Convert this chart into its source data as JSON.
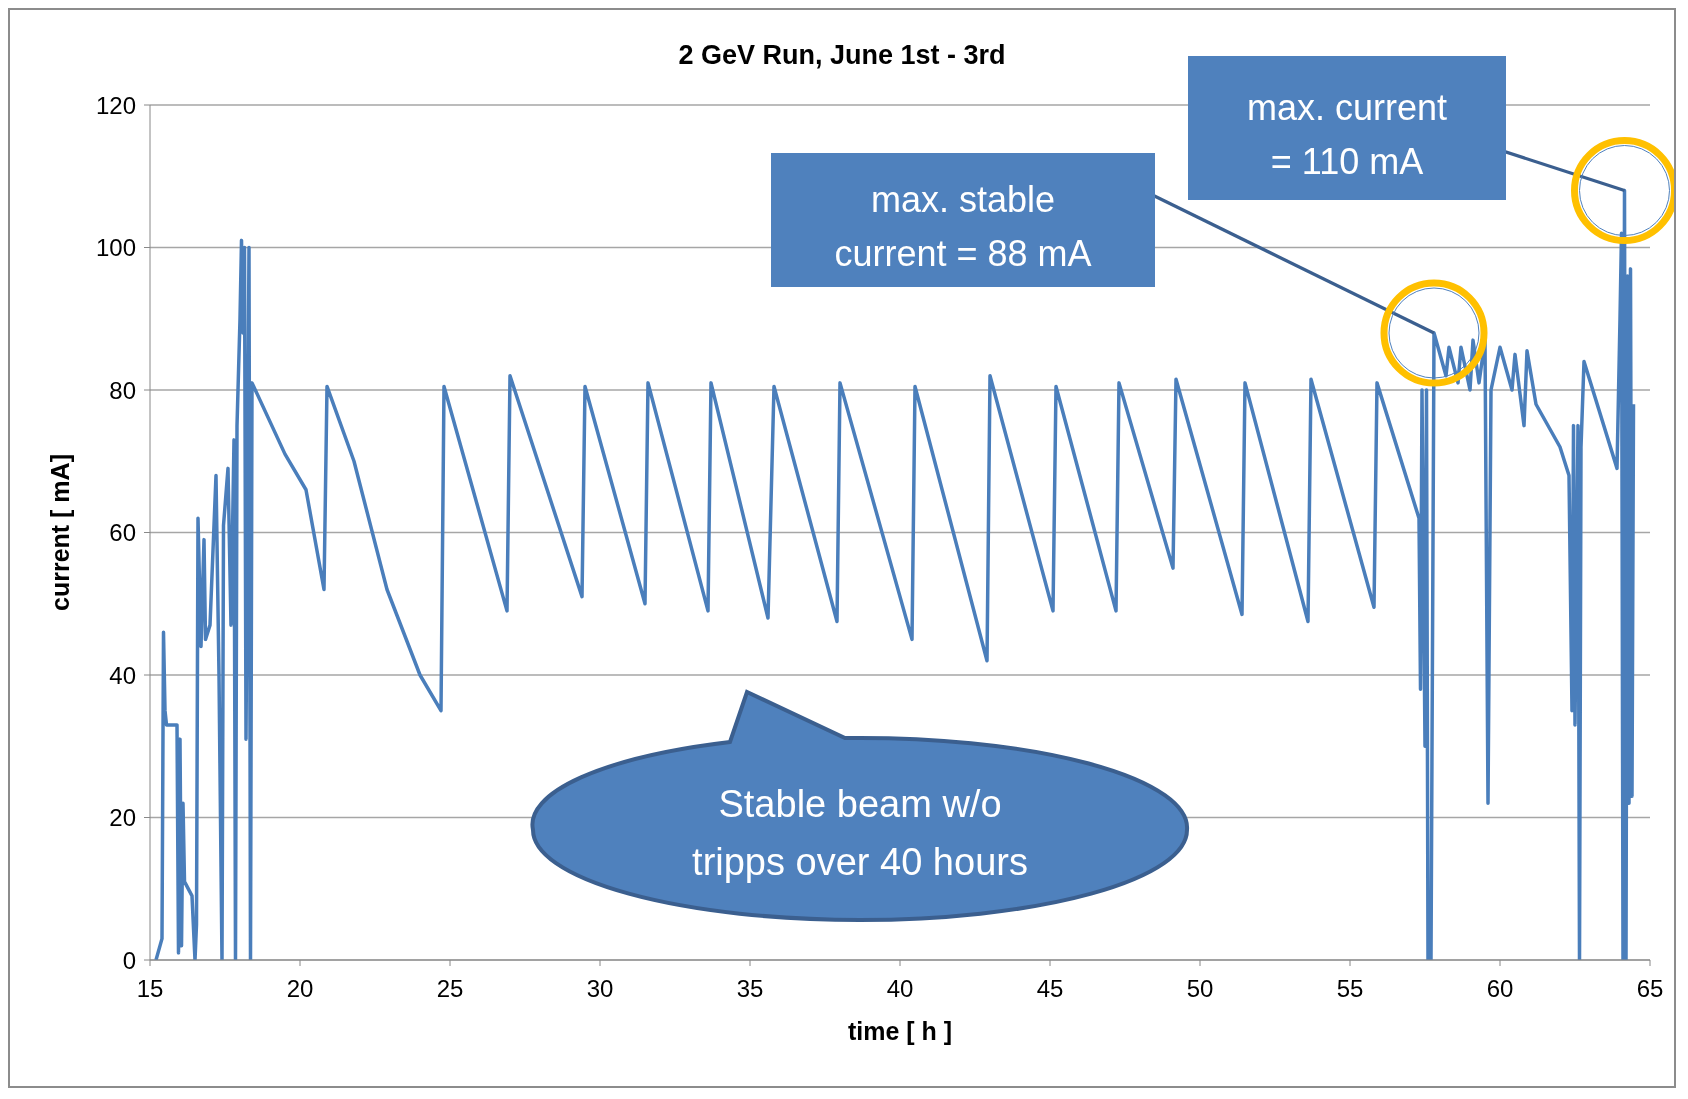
{
  "chart_data": {
    "type": "line",
    "title": "2 GeV Run, June 1st - 3rd",
    "xlabel": "time [ h ]",
    "ylabel": "current [ mA]",
    "xlim": [
      15,
      65
    ],
    "xticks": [
      15,
      20,
      25,
      30,
      35,
      40,
      45,
      50,
      55,
      60,
      65
    ],
    "ylim": [
      0,
      120
    ],
    "yticks": [
      0,
      20,
      40,
      60,
      80,
      100,
      120
    ],
    "grid": "y",
    "legend": false,
    "marker": "none",
    "line_style": "solid",
    "annotations": [
      {
        "text": "max. stable\ncurrent = 88 mA",
        "x": 57.8,
        "y": 88
      },
      {
        "text": "max. current\n= 110 mA",
        "x": 64.15,
        "y": 108
      },
      "Stable beam w/o\ntripps over 40 hours"
    ],
    "series": [
      {
        "color": "#4a7ebb",
        "x": [
          15.2,
          15.4,
          15.45,
          15.5,
          15.55,
          15.7,
          15.9,
          15.95,
          16.0,
          16.05,
          16.1,
          16.15,
          16.4,
          16.5,
          16.55,
          16.6,
          16.7,
          16.8,
          16.85,
          17.0,
          17.2,
          17.3,
          17.4,
          17.45,
          17.6,
          17.7,
          17.8,
          17.85,
          17.9,
          18.0,
          18.05,
          18.1,
          18.15,
          18.2,
          18.3,
          18.35,
          18.4,
          19.5,
          20.2,
          20.8,
          20.9,
          21.8,
          22.9,
          24.0,
          24.7,
          24.8,
          26.9,
          27.0,
          29.4,
          29.5,
          31.5,
          31.6,
          33.6,
          33.7,
          35.6,
          35.8,
          37.9,
          38.0,
          40.4,
          40.5,
          42.9,
          43.0,
          45.1,
          45.2,
          47.2,
          47.3,
          49.1,
          49.2,
          51.4,
          51.5,
          53.6,
          53.7,
          55.8,
          55.9,
          57.3,
          57.35,
          57.4,
          57.5,
          57.55,
          57.6,
          57.7,
          57.8,
          58.2,
          58.3,
          58.6,
          58.7,
          59.0,
          59.1,
          59.3,
          59.5,
          59.6,
          59.7,
          60.0,
          60.4,
          60.5,
          60.8,
          60.9,
          61.2,
          62.0,
          62.3,
          62.4,
          62.45,
          62.5,
          62.6,
          62.65,
          62.7,
          62.8,
          63.9,
          64.0,
          64.05,
          64.1,
          64.15,
          64.2,
          64.25,
          64.3,
          64.35,
          64.4,
          64.45
        ],
        "values": [
          0,
          3,
          46,
          35,
          33,
          33,
          33,
          1,
          31,
          2,
          22,
          11,
          9,
          0,
          5,
          62,
          44,
          59,
          45,
          47,
          68,
          40,
          0,
          61,
          69,
          47,
          73,
          0,
          75,
          90,
          101,
          88,
          100,
          31,
          100,
          0,
          81,
          71,
          66,
          52,
          80.5,
          70,
          52,
          40,
          35,
          80.5,
          49,
          82,
          51,
          80.5,
          50,
          81,
          49,
          81,
          48,
          80.5,
          47.5,
          81,
          45,
          80.5,
          42,
          82,
          49,
          80.5,
          49,
          81,
          55,
          81.5,
          48.5,
          81,
          47.5,
          81.5,
          49.5,
          81,
          62,
          38,
          80,
          30,
          80,
          0,
          0,
          88,
          82,
          86,
          81,
          86,
          80,
          87,
          81,
          87,
          22,
          80,
          86,
          80,
          85,
          75,
          85.5,
          78,
          72,
          68,
          35,
          75,
          33,
          75,
          0,
          72,
          84,
          69,
          90,
          102,
          0,
          108,
          0,
          96,
          22,
          97,
          23,
          78
        ]
      }
    ]
  }
}
